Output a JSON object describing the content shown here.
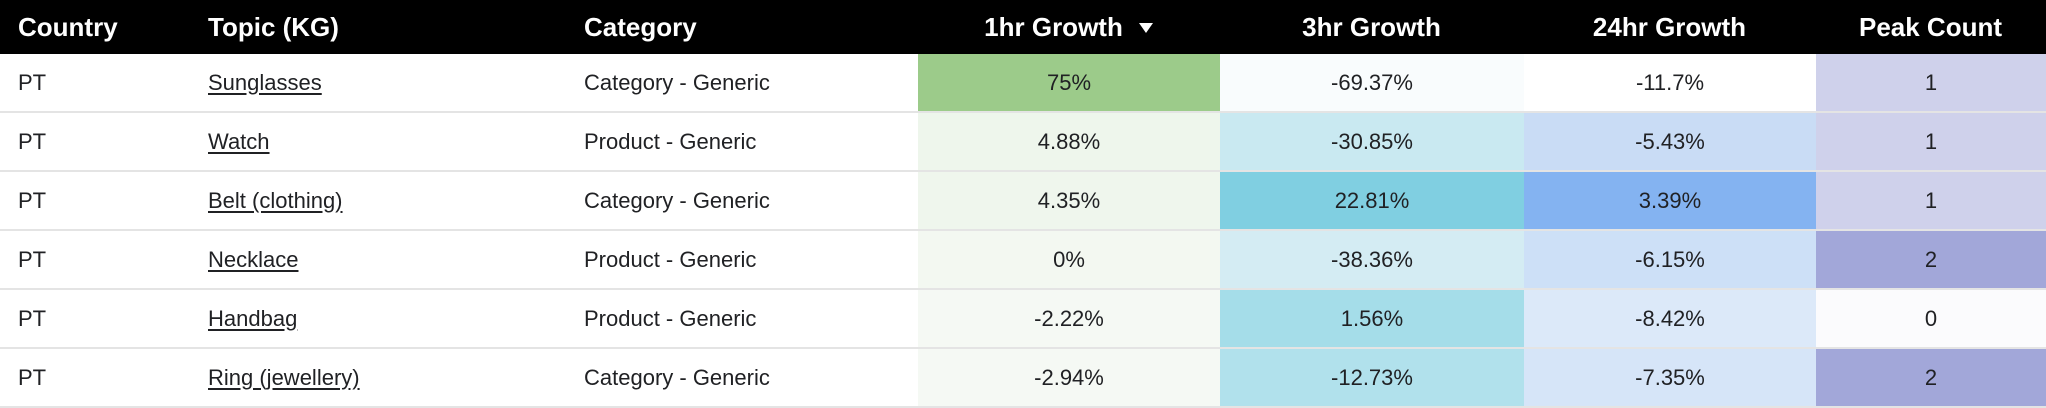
{
  "columns": {
    "country": "Country",
    "topic": "Topic (KG)",
    "category": "Category",
    "growth_1hr": "1hr Growth",
    "growth_3hr": "3hr Growth",
    "growth_24hr": "24hr Growth",
    "peak_count": "Peak Count"
  },
  "sort": {
    "column": "growth_1hr",
    "direction": "descending",
    "icon": "sort-descending-triangle-icon"
  },
  "rows": [
    {
      "country": "PT",
      "topic": "Sunglasses",
      "category": "Category - Generic",
      "growth_1hr": "75%",
      "growth_3hr": "-69.37%",
      "growth_24hr": "-11.7%",
      "peak_count": "1",
      "colors": {
        "growth_1hr": "#9ccb8a",
        "growth_3hr": "#f9fcfd",
        "growth_24hr": "#ffffff",
        "peak_count": "#cfd1eb"
      }
    },
    {
      "country": "PT",
      "topic": "Watch",
      "category": "Product - Generic",
      "growth_1hr": "4.88%",
      "growth_3hr": "-30.85%",
      "growth_24hr": "-5.43%",
      "peak_count": "1",
      "colors": {
        "growth_1hr": "#eef6ec",
        "growth_3hr": "#c9e9f1",
        "growth_24hr": "#c9dcf5",
        "peak_count": "#cfd1eb"
      }
    },
    {
      "country": "PT",
      "topic": "Belt (clothing)",
      "category": "Category - Generic",
      "growth_1hr": "4.35%",
      "growth_3hr": "22.81%",
      "growth_24hr": "3.39%",
      "peak_count": "1",
      "colors": {
        "growth_1hr": "#eff6ed",
        "growth_3hr": "#80cfe1",
        "growth_24hr": "#84b3f1",
        "peak_count": "#cfd1eb"
      }
    },
    {
      "country": "PT",
      "topic": "Necklace",
      "category": "Product - Generic",
      "growth_1hr": "0%",
      "growth_3hr": "-38.36%",
      "growth_24hr": "-6.15%",
      "peak_count": "2",
      "colors": {
        "growth_1hr": "#f3f8f1",
        "growth_3hr": "#d4ecf3",
        "growth_24hr": "#cde0f7",
        "peak_count": "#a2a7d9"
      }
    },
    {
      "country": "PT",
      "topic": "Handbag",
      "category": "Product - Generic",
      "growth_1hr": "-2.22%",
      "growth_3hr": "1.56%",
      "growth_24hr": "-8.42%",
      "peak_count": "0",
      "colors": {
        "growth_1hr": "#f5f9f4",
        "growth_3hr": "#a5dde9",
        "growth_24hr": "#dce9f9",
        "peak_count": "#fbfbfd"
      }
    },
    {
      "country": "PT",
      "topic": "Ring (jewellery)",
      "category": "Category - Generic",
      "growth_1hr": "-2.94%",
      "growth_3hr": "-12.73%",
      "growth_24hr": "-7.35%",
      "peak_count": "2",
      "colors": {
        "growth_1hr": "#f5f9f4",
        "growth_3hr": "#b1e1ec",
        "growth_24hr": "#d6e5f8",
        "peak_count": "#a2a7d9"
      }
    }
  ]
}
